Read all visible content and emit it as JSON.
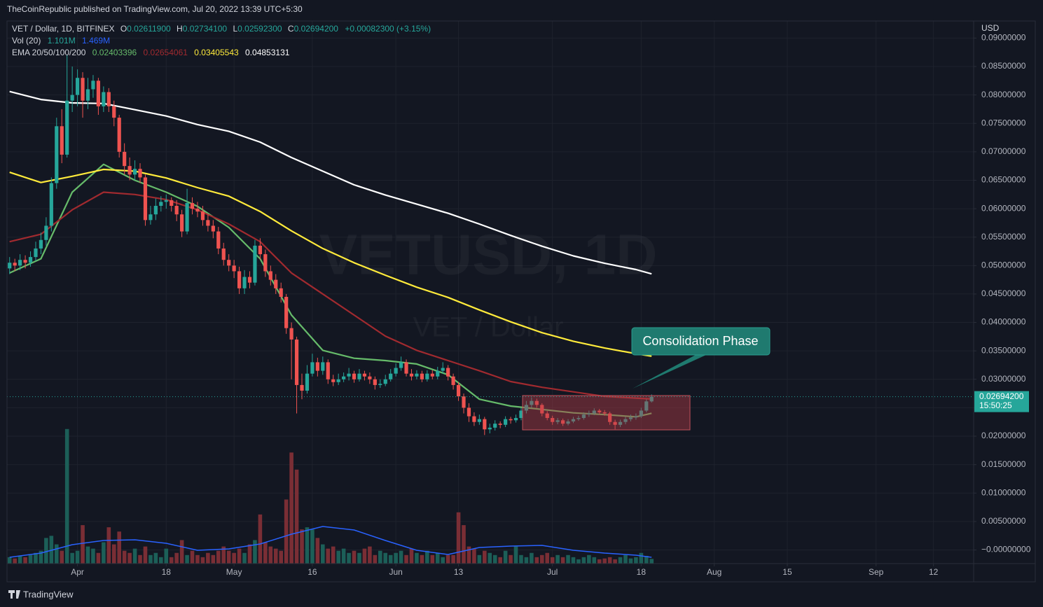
{
  "header": {
    "publisher": "TheCoinRepublic published on TradingView.com, Jul 20, 2022 13:39 UTC+5:30",
    "footer": "TradingView"
  },
  "chart_data": {
    "type": "candlestick",
    "title": "VET / Dollar, 1D, BITFINEX",
    "watermark": "VETUSD, 1D",
    "watermark_sub": "VET / Dollar",
    "ohlc_legend": [
      {
        "key": "O",
        "label": "0.02611900"
      },
      {
        "key": "H",
        "label": "0.02734100"
      },
      {
        "key": "L",
        "label": "0.02592300"
      },
      {
        "key": "C",
        "label": "0.02694200"
      }
    ],
    "change_label": "+0.00082300 (+3.15%)",
    "y_axis_unit": "USD",
    "last_price": {
      "label": "0.02694200",
      "countdown": "15:50:25"
    },
    "annotation": "Consolidation Phase",
    "colors": {
      "up": "#26a69a",
      "down": "#ef5350",
      "up_volume": "#1c5f58",
      "down_volume": "#7a2e35"
    },
    "grid": true,
    "xlim": [
      -0.5,
      184.7
    ],
    "xticks": [
      {
        "value": 13,
        "label": "Apr"
      },
      {
        "value": 30,
        "label": "18"
      },
      {
        "value": 43,
        "label": "May"
      },
      {
        "value": 58,
        "label": "16"
      },
      {
        "value": 74,
        "label": "Jun"
      },
      {
        "value": 86,
        "label": "13"
      },
      {
        "value": 104,
        "label": "Jul"
      },
      {
        "value": 121,
        "label": "18"
      },
      {
        "value": 135,
        "label": "Aug"
      },
      {
        "value": 149,
        "label": "15"
      },
      {
        "value": 166,
        "label": "Sep"
      },
      {
        "value": 177,
        "label": "12"
      }
    ],
    "ylim": [
      -0.0024,
      0.093
    ],
    "yticks": [
      {
        "value": 0.09,
        "label": "0.09000000"
      },
      {
        "value": 0.085,
        "label": "0.08500000"
      },
      {
        "value": 0.08,
        "label": "0.08000000"
      },
      {
        "value": 0.075,
        "label": "0.07500000"
      },
      {
        "value": 0.07,
        "label": "0.07000000"
      },
      {
        "value": 0.065,
        "label": "0.06500000"
      },
      {
        "value": 0.06,
        "label": "0.06000000"
      },
      {
        "value": 0.055,
        "label": "0.05500000"
      },
      {
        "value": 0.05,
        "label": "0.05000000"
      },
      {
        "value": 0.045,
        "label": "0.04500000"
      },
      {
        "value": 0.04,
        "label": "0.04000000"
      },
      {
        "value": 0.035,
        "label": "0.03500000"
      },
      {
        "value": 0.03,
        "label": "0.03000000"
      },
      {
        "value": 0.025,
        "label": "0.02500000"
      },
      {
        "value": 0.02,
        "label": "0.02000000"
      },
      {
        "value": 0.015,
        "label": "0.01500000"
      },
      {
        "value": 0.01,
        "label": "0.01000000"
      },
      {
        "value": 0.005,
        "label": "0.00500000"
      },
      {
        "value": 0,
        "label": "−0.00000000"
      }
    ],
    "y2lim": [
      0,
      127
    ],
    "open": [
      0.0495,
      0.0505,
      0.05,
      0.051,
      0.0505,
      0.0515,
      0.053,
      0.0545,
      0.057,
      0.0645,
      0.0745,
      0.0695,
      0.079,
      0.08,
      0.083,
      0.079,
      0.081,
      0.0825,
      0.078,
      0.0805,
      0.078,
      0.076,
      0.07,
      0.0675,
      0.066,
      0.067,
      0.0655,
      0.058,
      0.059,
      0.0605,
      0.0612,
      0.0615,
      0.0605,
      0.059,
      0.056,
      0.061,
      0.06,
      0.0595,
      0.058,
      0.057,
      0.056,
      0.053,
      0.051,
      0.05,
      0.049,
      0.046,
      0.048,
      0.047,
      0.0535,
      0.052,
      0.049,
      0.0475,
      0.046,
      0.0445,
      0.039,
      0.037,
      0.029,
      0.028,
      0.031,
      0.033,
      0.0315,
      0.033,
      0.03,
      0.0295,
      0.03,
      0.0305,
      0.031,
      0.03,
      0.031,
      0.0305,
      0.03,
      0.029,
      0.0292,
      0.03,
      0.031,
      0.032,
      0.033,
      0.031,
      0.0305,
      0.031,
      0.03,
      0.031,
      0.0305,
      0.0315,
      0.032,
      0.0305,
      0.029,
      0.027,
      0.025,
      0.0235,
      0.0225,
      0.023,
      0.0212,
      0.0215,
      0.0222,
      0.022,
      0.023,
      0.0228,
      0.0232,
      0.0245,
      0.0255,
      0.0262,
      0.0255,
      0.024,
      0.0232,
      0.0225,
      0.0228,
      0.0222,
      0.0226,
      0.023,
      0.0232,
      0.0238,
      0.024,
      0.0245,
      0.0242,
      0.024,
      0.0225,
      0.022,
      0.0225,
      0.023,
      0.0233,
      0.0235,
      0.0245,
      0.026119
    ],
    "high": [
      0.0515,
      0.0512,
      0.052,
      0.0518,
      0.0525,
      0.0542,
      0.0558,
      0.0585,
      0.0655,
      0.076,
      0.0775,
      0.087,
      0.085,
      0.0845,
      0.084,
      0.083,
      0.0835,
      0.083,
      0.0815,
      0.0812,
      0.079,
      0.0765,
      0.0715,
      0.069,
      0.0685,
      0.068,
      0.066,
      0.0605,
      0.0618,
      0.0622,
      0.0625,
      0.062,
      0.0615,
      0.0598,
      0.0635,
      0.062,
      0.0612,
      0.0605,
      0.059,
      0.058,
      0.0568,
      0.054,
      0.052,
      0.051,
      0.0498,
      0.0492,
      0.049,
      0.0545,
      0.0548,
      0.0528,
      0.05,
      0.0485,
      0.047,
      0.045,
      0.04,
      0.0375,
      0.031,
      0.0325,
      0.0345,
      0.0338,
      0.034,
      0.0335,
      0.0308,
      0.031,
      0.0312,
      0.032,
      0.0315,
      0.0318,
      0.0315,
      0.0312,
      0.0305,
      0.03,
      0.0308,
      0.0318,
      0.0328,
      0.034,
      0.0335,
      0.0318,
      0.0316,
      0.0315,
      0.0316,
      0.0316,
      0.0322,
      0.033,
      0.0325,
      0.031,
      0.0295,
      0.0275,
      0.0258,
      0.0242,
      0.0238,
      0.0234,
      0.0222,
      0.0228,
      0.0226,
      0.0235,
      0.0234,
      0.0238,
      0.025,
      0.0262,
      0.0268,
      0.0266,
      0.0258,
      0.0244,
      0.0236,
      0.0232,
      0.0231,
      0.023,
      0.0234,
      0.0236,
      0.0242,
      0.0245,
      0.0249,
      0.0248,
      0.0246,
      0.0243,
      0.0229,
      0.0229,
      0.0234,
      0.0238,
      0.024,
      0.025,
      0.0265,
      0.027341
    ],
    "low": [
      0.0485,
      0.049,
      0.0492,
      0.0495,
      0.0498,
      0.0508,
      0.052,
      0.0535,
      0.056,
      0.0635,
      0.068,
      0.069,
      0.077,
      0.078,
      0.076,
      0.0775,
      0.0795,
      0.0765,
      0.077,
      0.077,
      0.0745,
      0.069,
      0.066,
      0.065,
      0.065,
      0.0645,
      0.057,
      0.0572,
      0.058,
      0.0595,
      0.06,
      0.0595,
      0.0578,
      0.055,
      0.0555,
      0.059,
      0.0585,
      0.057,
      0.056,
      0.0548,
      0.052,
      0.05,
      0.049,
      0.0478,
      0.045,
      0.045,
      0.046,
      0.0465,
      0.051,
      0.048,
      0.0465,
      0.045,
      0.0435,
      0.038,
      0.03,
      0.024,
      0.0265,
      0.0275,
      0.0305,
      0.0305,
      0.0308,
      0.0292,
      0.0288,
      0.029,
      0.0295,
      0.0298,
      0.0294,
      0.0296,
      0.0298,
      0.0292,
      0.0282,
      0.0285,
      0.0288,
      0.0296,
      0.0305,
      0.0315,
      0.0305,
      0.0298,
      0.03,
      0.0295,
      0.0296,
      0.03,
      0.03,
      0.031,
      0.0298,
      0.0282,
      0.0262,
      0.024,
      0.0225,
      0.0218,
      0.022,
      0.0202,
      0.0205,
      0.021,
      0.0214,
      0.0216,
      0.0222,
      0.0224,
      0.0228,
      0.024,
      0.025,
      0.025,
      0.0235,
      0.0228,
      0.022,
      0.0221,
      0.0218,
      0.0219,
      0.0223,
      0.0227,
      0.0229,
      0.0234,
      0.0237,
      0.0238,
      0.0236,
      0.022,
      0.0212,
      0.0216,
      0.0221,
      0.0226,
      0.0229,
      0.0232,
      0.0242,
      0.025923
    ],
    "close": [
      0.0505,
      0.05,
      0.051,
      0.0505,
      0.0515,
      0.053,
      0.0545,
      0.057,
      0.0645,
      0.0745,
      0.0695,
      0.079,
      0.08,
      0.083,
      0.079,
      0.081,
      0.0825,
      0.078,
      0.0805,
      0.078,
      0.076,
      0.07,
      0.0675,
      0.066,
      0.067,
      0.0655,
      0.058,
      0.059,
      0.0605,
      0.0612,
      0.0615,
      0.0605,
      0.059,
      0.056,
      0.061,
      0.06,
      0.0595,
      0.058,
      0.057,
      0.056,
      0.053,
      0.051,
      0.05,
      0.049,
      0.046,
      0.048,
      0.047,
      0.0535,
      0.052,
      0.049,
      0.0475,
      0.046,
      0.0445,
      0.039,
      0.037,
      0.029,
      0.028,
      0.031,
      0.033,
      0.0315,
      0.033,
      0.03,
      0.0295,
      0.03,
      0.0305,
      0.031,
      0.03,
      0.031,
      0.0305,
      0.03,
      0.029,
      0.0292,
      0.03,
      0.031,
      0.032,
      0.033,
      0.031,
      0.0305,
      0.031,
      0.03,
      0.031,
      0.0305,
      0.0315,
      0.032,
      0.0305,
      0.029,
      0.027,
      0.025,
      0.0235,
      0.0225,
      0.023,
      0.0212,
      0.0215,
      0.0222,
      0.022,
      0.023,
      0.0228,
      0.0232,
      0.0245,
      0.0255,
      0.0262,
      0.0255,
      0.024,
      0.0232,
      0.0225,
      0.0228,
      0.0222,
      0.0226,
      0.023,
      0.0232,
      0.0238,
      0.024,
      0.0245,
      0.0242,
      0.024,
      0.0225,
      0.022,
      0.0225,
      0.023,
      0.0233,
      0.0235,
      0.0245,
      0.026119,
      0.026942
    ],
    "volume": {
      "name": "Vol (20)",
      "axis": "y2",
      "value_label": "1.101M",
      "values": [
        1.5,
        1.2,
        1.8,
        1.5,
        2.0,
        2.5,
        3.0,
        6.0,
        6.5,
        4.5,
        3.0,
        31.5,
        2.5,
        3.0,
        9.0,
        4.0,
        3.5,
        2.5,
        5.0,
        8.5,
        4.5,
        7.5,
        3.0,
        2.5,
        3.5,
        2.0,
        4.0,
        2.0,
        2.5,
        1.5,
        3.5,
        1.5,
        2.5,
        5.5,
        2.0,
        3.0,
        2.0,
        1.5,
        2.5,
        2.0,
        3.0,
        4.0,
        3.0,
        2.5,
        3.5,
        2.5,
        4.5,
        5.5,
        11.5,
        5.0,
        4.0,
        3.5,
        3.0,
        15.0,
        26.0,
        22.0,
        8.0,
        8.5,
        8.0,
        6.0,
        4.5,
        3.5,
        4.0,
        3.0,
        3.5,
        2.5,
        3.0,
        2.5,
        3.5,
        4.0,
        2.0,
        3.0,
        2.5,
        2.0,
        2.5,
        3.0,
        2.0,
        3.5,
        2.5,
        2.0,
        3.0,
        2.0,
        2.5,
        1.5,
        2.0,
        2.0,
        12.0,
        9.0,
        4.0,
        3.5,
        2.0,
        3.0,
        2.5,
        2.0,
        1.5,
        3.0,
        2.0,
        4.0,
        2.0,
        1.5,
        2.5,
        1.5,
        2.0,
        2.5,
        1.5,
        2.0,
        1.5,
        2.0,
        1.5,
        1.0,
        1.5,
        2.0,
        1.5,
        1.0,
        1.2,
        1.5,
        1.0,
        1.5,
        2.0,
        1.2,
        1.5,
        2.5,
        1.8,
        1.101
      ]
    },
    "indicator_label": "EMA 20/50/100/200",
    "series": [
      {
        "color": "#2962ff",
        "axis": "y2",
        "legend_label": "1.469M",
        "x": [
          0,
          6,
          12,
          18,
          24,
          30,
          36,
          42,
          48,
          54,
          60,
          66,
          72,
          78,
          84,
          90,
          96,
          102,
          108,
          114,
          120,
          123
        ],
        "values": [
          1.48,
          2.46,
          4.43,
          5.41,
          5.57,
          4.75,
          3.11,
          3.44,
          4.59,
          6.89,
          8.69,
          7.87,
          5.41,
          3.11,
          2.13,
          3.77,
          4.1,
          4.26,
          3.11,
          2.46,
          1.97,
          1.469
        ]
      },
      {
        "color": "#66bb6a",
        "legend_label": "0.02403396",
        "x": [
          0,
          6,
          12,
          18,
          24,
          30,
          36,
          42,
          48,
          54,
          60,
          66,
          72,
          78,
          84,
          90,
          96,
          102,
          108,
          114,
          120,
          123
        ],
        "values": [
          0.0487,
          0.0512,
          0.0629,
          0.0678,
          0.065,
          0.0629,
          0.0604,
          0.0567,
          0.0512,
          0.0413,
          0.0351,
          0.0337,
          0.0333,
          0.0327,
          0.0308,
          0.0265,
          0.0253,
          0.0247,
          0.0241,
          0.0238,
          0.0234,
          0.02403396
        ]
      },
      {
        "color": "#a12a2f",
        "legend_label": "0.02654061",
        "x": [
          0,
          6,
          12,
          18,
          24,
          30,
          36,
          42,
          48,
          54,
          60,
          66,
          72,
          78,
          84,
          90,
          96,
          102,
          108,
          114,
          120,
          123
        ],
        "values": [
          0.0542,
          0.0555,
          0.0598,
          0.0629,
          0.0625,
          0.0616,
          0.0598,
          0.0573,
          0.0542,
          0.0487,
          0.045,
          0.0413,
          0.0376,
          0.0351,
          0.0333,
          0.0315,
          0.0296,
          0.0286,
          0.0278,
          0.027,
          0.0267,
          0.02654061
        ]
      },
      {
        "color": "#ffeb3b",
        "legend_label": "0.03405543",
        "x": [
          0,
          6,
          12,
          18,
          24,
          30,
          36,
          42,
          48,
          54,
          60,
          66,
          72,
          78,
          84,
          90,
          96,
          102,
          108,
          114,
          120,
          123
        ],
        "values": [
          0.0664,
          0.0646,
          0.0657,
          0.0669,
          0.0666,
          0.0654,
          0.0637,
          0.0622,
          0.0595,
          0.0561,
          0.053,
          0.0505,
          0.0483,
          0.0462,
          0.0444,
          0.0422,
          0.0401,
          0.0382,
          0.0367,
          0.0355,
          0.0345,
          0.03405543
        ]
      },
      {
        "color": "#ffffff",
        "legend_label": "0.04853131",
        "x": [
          0,
          6,
          12,
          18,
          24,
          30,
          36,
          42,
          48,
          54,
          60,
          66,
          72,
          78,
          84,
          90,
          96,
          102,
          108,
          114,
          120,
          123
        ],
        "values": [
          0.0806,
          0.0792,
          0.0786,
          0.0785,
          0.0774,
          0.0763,
          0.0748,
          0.0736,
          0.0717,
          0.069,
          0.0666,
          0.0642,
          0.0624,
          0.0608,
          0.0592,
          0.0573,
          0.0553,
          0.0534,
          0.0517,
          0.0504,
          0.0493,
          0.04853131
        ]
      }
    ]
  }
}
